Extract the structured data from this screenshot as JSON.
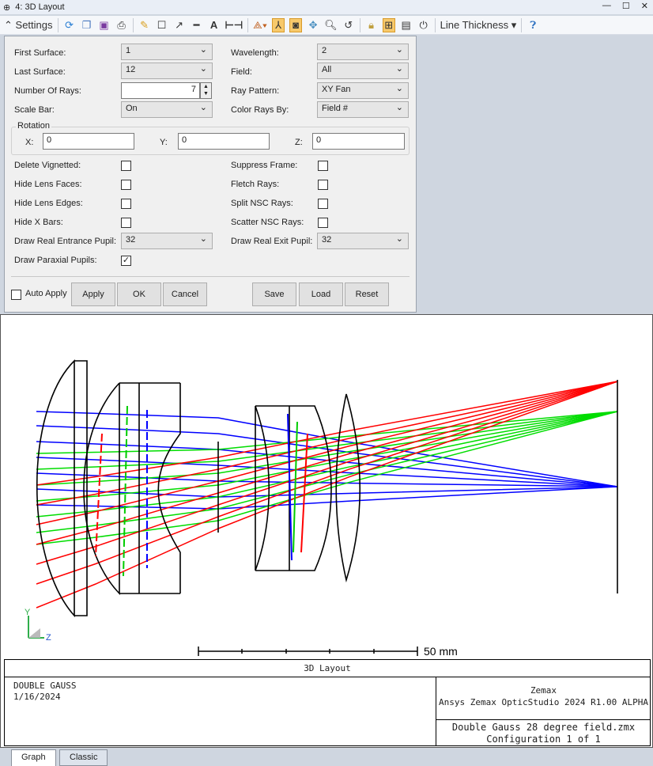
{
  "window": {
    "title": "4: 3D Layout",
    "icon": "lens-icon"
  },
  "toolbar": {
    "settings_label": "Settings",
    "line_thickness_label": "Line Thickness"
  },
  "settings": {
    "first_surface": {
      "label": "First Surface:",
      "value": "1"
    },
    "last_surface": {
      "label": "Last Surface:",
      "value": "12"
    },
    "number_of_rays": {
      "label": "Number Of Rays:",
      "value": "7"
    },
    "scale_bar": {
      "label": "Scale Bar:",
      "value": "On"
    },
    "wavelength": {
      "label": "Wavelength:",
      "value": "2"
    },
    "field": {
      "label": "Field:",
      "value": "All"
    },
    "ray_pattern": {
      "label": "Ray Pattern:",
      "value": "XY Fan"
    },
    "color_rays_by": {
      "label": "Color Rays By:",
      "value": "Field #"
    },
    "rotation": {
      "label": "Rotation",
      "x_label": "X:",
      "x": "0",
      "y_label": "Y:",
      "y": "0",
      "z_label": "Z:",
      "z": "0"
    },
    "checks_left": [
      {
        "label": "Delete Vignetted:",
        "checked": false
      },
      {
        "label": "Hide Lens Faces:",
        "checked": false
      },
      {
        "label": "Hide Lens Edges:",
        "checked": false
      },
      {
        "label": "Hide X Bars:",
        "checked": false
      }
    ],
    "checks_right": [
      {
        "label": "Suppress Frame:",
        "checked": false
      },
      {
        "label": "Fletch Rays:",
        "checked": false
      },
      {
        "label": "Split NSC Rays:",
        "checked": false
      },
      {
        "label": "Scatter NSC Rays:",
        "checked": false
      }
    ],
    "entrance_pupil": {
      "label": "Draw Real Entrance Pupil:",
      "value": "32"
    },
    "exit_pupil": {
      "label": "Draw Real Exit Pupil:",
      "value": "32"
    },
    "paraxial_pupils": {
      "label": "Draw Paraxial Pupils:",
      "checked": true,
      "mark": "✓"
    },
    "auto_apply": {
      "label": "Auto Apply",
      "checked": false
    },
    "buttons": {
      "apply": "Apply",
      "ok": "OK",
      "cancel": "Cancel",
      "save": "Save",
      "load": "Load",
      "reset": "Reset"
    }
  },
  "graph": {
    "scale_label": "50 mm",
    "axis_y": "Y",
    "axis_z": "Z",
    "title": "3D Layout",
    "lens_name": "DOUBLE GAUSS",
    "date": "1/16/2024",
    "company": "Zemax",
    "product": "Ansys Zemax OpticStudio 2024 R1.00 ALPHA",
    "file": "Double Gauss 28 degree field.zmx",
    "config": "Configuration 1 of 1",
    "ray_colors": {
      "field1": "#0000ff",
      "field2": "#00dd00",
      "field3": "#ff0000"
    }
  },
  "tabs": [
    {
      "label": "Graph",
      "active": true
    },
    {
      "label": "Classic",
      "active": false
    }
  ]
}
